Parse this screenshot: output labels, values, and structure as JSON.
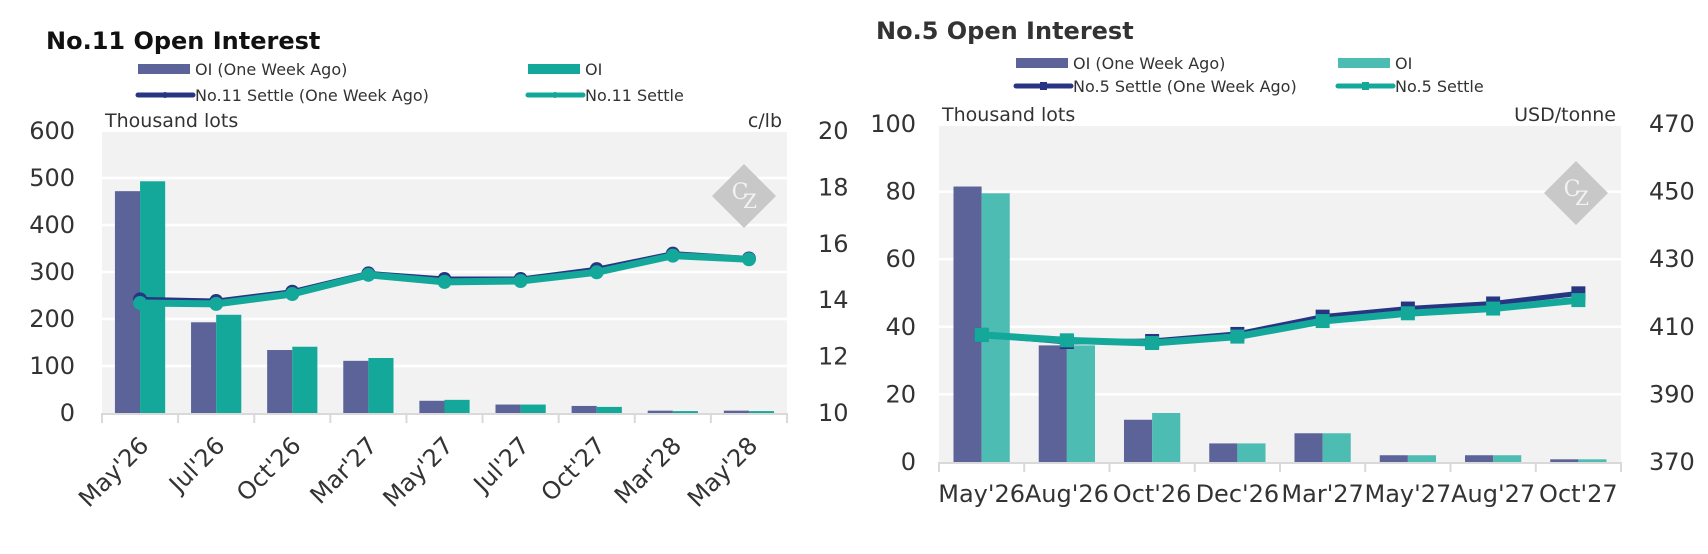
{
  "chart_data": [
    {
      "type": "bar",
      "title": "No.11 Open Interest",
      "categories": [
        "May'26",
        "Jul'26",
        "Oct'26",
        "Mar'27",
        "May'27",
        "Jul'27",
        "Oct'27",
        "Mar'28",
        "May'28"
      ],
      "ylabel": "Thousand lots",
      "y2label": "c/lb",
      "ylim": [
        0,
        600
      ],
      "y2lim": [
        10,
        20
      ],
      "yticks": [
        "0",
        "100",
        "200",
        "300",
        "400",
        "500",
        "600"
      ],
      "y2ticks": [
        "10",
        "12",
        "14",
        "16",
        "18",
        "20"
      ],
      "grid": true,
      "xtick_rotation": "diagonal",
      "legend_placement": "top",
      "series": [
        {
          "name": "OI (One Week Ago)",
          "kind": "bar",
          "axis": "left",
          "color": "#5b6399",
          "values": [
            472,
            193,
            134,
            111,
            26,
            18,
            15,
            5,
            5
          ]
        },
        {
          "name": "OI",
          "kind": "bar",
          "axis": "left",
          "color": "#13a89a",
          "values": [
            493,
            209,
            141,
            117,
            28,
            18,
            13,
            4,
            4
          ]
        },
        {
          "name": "No.11 Settle (One Week Ago)",
          "kind": "line",
          "marker": "circle",
          "axis": "right",
          "color": "#283583",
          "values": [
            14.03,
            13.97,
            14.3,
            14.95,
            14.75,
            14.75,
            15.1,
            15.65,
            15.48
          ]
        },
        {
          "name": "No.11 Settle",
          "kind": "line",
          "marker": "circle",
          "axis": "right",
          "color": "#13a89a",
          "values": [
            13.9,
            13.87,
            14.22,
            14.9,
            14.65,
            14.68,
            14.99,
            15.58,
            15.45
          ]
        }
      ],
      "watermark": "CZ"
    },
    {
      "type": "bar",
      "title": "No.5 Open Interest",
      "categories": [
        "May'26",
        "Aug'26",
        "Oct'26",
        "Dec'26",
        "Mar'27",
        "May'27",
        "Aug'27",
        "Oct'27"
      ],
      "ylabel": "Thousand lots",
      "y2label": "USD/tonne",
      "ylim": [
        0,
        100
      ],
      "y2lim": [
        370,
        470
      ],
      "yticks": [
        "0",
        "20",
        "40",
        "60",
        "80",
        "100"
      ],
      "y2ticks": [
        "370",
        "390",
        "410",
        "430",
        "450",
        "470"
      ],
      "grid": true,
      "xtick_rotation": "horizontal",
      "legend_placement": "top",
      "series": [
        {
          "name": "OI (One Week Ago)",
          "kind": "bar",
          "axis": "left",
          "color": "#5b6399",
          "values": [
            81.5,
            34.5,
            12.5,
            5.5,
            8.5,
            2.0,
            2.0,
            0.8
          ]
        },
        {
          "name": "OI",
          "kind": "bar",
          "axis": "left",
          "color": "#4dbcb3",
          "values": [
            79.5,
            34.5,
            14.5,
            5.5,
            8.5,
            2.0,
            2.0,
            0.8
          ]
        },
        {
          "name": "No.5 Settle (One Week Ago)",
          "kind": "line",
          "marker": "square",
          "axis": "right",
          "color": "#283583",
          "values": [
            407.6,
            405.5,
            405.8,
            407.9,
            413.0,
            415.4,
            416.9,
            419.9
          ]
        },
        {
          "name": "No.5 Settle",
          "kind": "line",
          "marker": "square",
          "axis": "right",
          "color": "#13a89a",
          "values": [
            407.6,
            406.0,
            405.2,
            407.1,
            411.7,
            414.0,
            415.4,
            417.9
          ]
        }
      ],
      "watermark": "CZ"
    }
  ]
}
